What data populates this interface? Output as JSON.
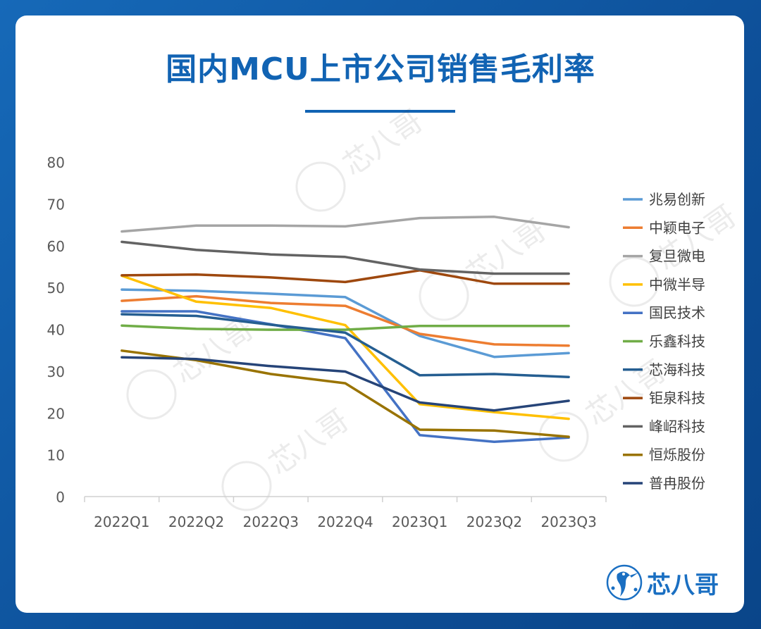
{
  "title": "国内MCU上市公司销售毛利率",
  "brand": {
    "name": "芯八哥",
    "watermark": "芯八哥"
  },
  "chart_data": {
    "type": "line",
    "title": "国内MCU上市公司销售毛利率",
    "xlabel": "",
    "ylabel": "",
    "ylim": [
      0,
      80
    ],
    "yticks": [
      0,
      10,
      20,
      30,
      40,
      50,
      60,
      70,
      80
    ],
    "grid": false,
    "legend_position": "right",
    "categories": [
      "2022Q1",
      "2022Q2",
      "2022Q3",
      "2022Q4",
      "2023Q1",
      "2023Q2",
      "2023Q3"
    ],
    "series": [
      {
        "name": "兆易创新",
        "color": "#5b9bd5",
        "values": [
          49.5,
          49.2,
          48.5,
          47.7,
          38.4,
          33.4,
          34.3
        ]
      },
      {
        "name": "中颖电子",
        "color": "#ed7d31",
        "values": [
          46.8,
          47.9,
          46.3,
          45.6,
          38.9,
          36.4,
          36.1
        ]
      },
      {
        "name": "复旦微电",
        "color": "#a5a5a5",
        "values": [
          63.4,
          64.8,
          64.8,
          64.6,
          66.6,
          66.9,
          64.4
        ]
      },
      {
        "name": "中微半导",
        "color": "#ffc000",
        "values": [
          52.8,
          46.6,
          45.1,
          41.0,
          22.1,
          20.2,
          18.6
        ]
      },
      {
        "name": "国民技术",
        "color": "#4472c4",
        "values": [
          44.3,
          44.3,
          41.2,
          37.9,
          14.7,
          13.1,
          14.1
        ]
      },
      {
        "name": "乐鑫科技",
        "color": "#70ad47",
        "values": [
          40.9,
          40.1,
          39.9,
          39.9,
          40.8,
          40.8,
          40.8
        ]
      },
      {
        "name": "芯海科技",
        "color": "#255e91",
        "values": [
          43.6,
          43.2,
          41.1,
          39.2,
          29.0,
          29.3,
          28.6
        ]
      },
      {
        "name": "钜泉科技",
        "color": "#9e480e",
        "values": [
          52.9,
          53.1,
          52.4,
          51.3,
          54.1,
          50.9,
          50.9
        ]
      },
      {
        "name": "峰岹科技",
        "color": "#636363",
        "values": [
          60.9,
          59.0,
          57.9,
          57.3,
          54.3,
          53.3,
          53.3
        ]
      },
      {
        "name": "恒烁股份",
        "color": "#997300",
        "values": [
          34.9,
          32.6,
          29.3,
          27.1,
          16.0,
          15.8,
          14.3
        ]
      },
      {
        "name": "普冉股份",
        "color": "#264478",
        "values": [
          33.3,
          32.9,
          31.2,
          29.9,
          22.5,
          20.6,
          22.9
        ]
      }
    ]
  }
}
